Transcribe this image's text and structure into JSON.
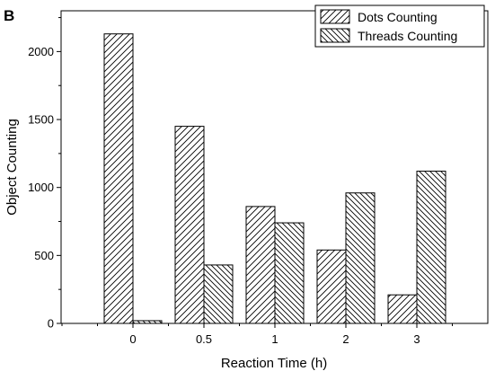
{
  "panel_label": "B",
  "chart_data": {
    "type": "bar",
    "categories": [
      "0",
      "0.5",
      "1",
      "2",
      "3"
    ],
    "series": [
      {
        "name": "Dots Counting",
        "values": [
          2130,
          1450,
          860,
          540,
          210
        ],
        "pattern": "forward-hatch"
      },
      {
        "name": "Threads Counting",
        "values": [
          20,
          430,
          740,
          960,
          1120
        ],
        "pattern": "backward-hatch"
      }
    ],
    "xlabel": "Reaction Time (h)",
    "ylabel": "Object Counting",
    "ylim": [
      0,
      2300
    ],
    "yticks": [
      0,
      500,
      1000,
      1500,
      2000
    ],
    "grid": false,
    "legend_position": "top-right",
    "colors": {
      "stroke": "#000000",
      "fill": "#ffffff"
    }
  }
}
